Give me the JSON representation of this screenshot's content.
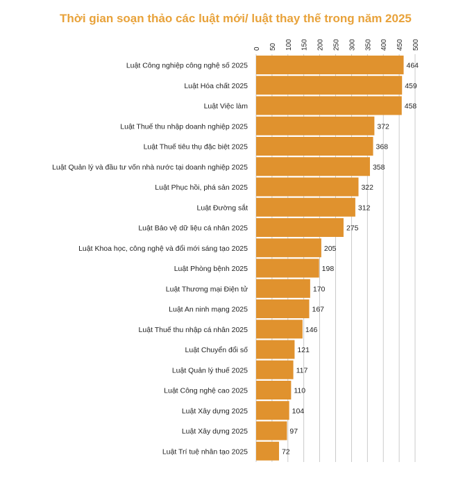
{
  "chart_data": {
    "type": "bar",
    "orientation": "horizontal",
    "title": "Thời gian soạn thảo các luật mới/ luật thay thế trong năm 2025",
    "xlabel": "",
    "ylabel": "",
    "xlim": [
      0,
      500
    ],
    "xticks": [
      0,
      50,
      100,
      150,
      200,
      250,
      300,
      350,
      400,
      450,
      500
    ],
    "grid": true,
    "axis_position": "top",
    "bar_color": "#e0922e",
    "title_color": "#e8a23a",
    "categories": [
      "Luật Công nghiệp công nghệ số 2025",
      "Luật Hóa chất 2025",
      "Luật Việc làm",
      "Luật Thuế thu nhập doanh nghiệp 2025",
      "Luật Thuế tiêu thụ đặc biệt 2025",
      "Luật Quản lý và đầu tư vốn nhà nước tại doanh nghiệp 2025",
      "Luật Phục hồi, phá sản 2025",
      "Luật Đường sắt",
      "Luật Bảo vệ dữ liệu cá nhân 2025",
      "Luật Khoa học, công nghệ và đổi mới sáng tạo 2025",
      "Luật Phòng bệnh 2025",
      "Luật Thương mại Điện tử",
      "Luật An ninh mạng 2025",
      "Luật Thuế thu nhập cá nhân 2025",
      "Luật Chuyển đổi số",
      "Luật Quản lý thuế 2025",
      "Luật Công nghệ cao 2025",
      "Luật Xây dựng 2025",
      "Luật Xây dựng 2025",
      "Luật Trí tuệ nhân tạo 2025"
    ],
    "values": [
      464,
      459,
      458,
      372,
      368,
      358,
      322,
      312,
      275,
      205,
      198,
      170,
      167,
      146,
      121,
      117,
      110,
      104,
      97,
      72
    ]
  }
}
